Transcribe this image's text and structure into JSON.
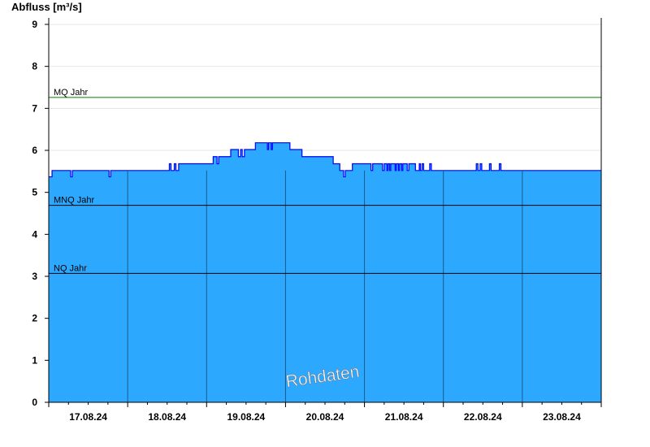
{
  "chart_data": {
    "type": "area",
    "title": "",
    "ylabel": "Abfluss [m³/s]",
    "xlabel": "",
    "ylim": [
      0,
      9
    ],
    "yticks": [
      "0",
      "1",
      "2",
      "3",
      "4",
      "5",
      "6",
      "7",
      "8",
      "9"
    ],
    "xlim": [
      "2024-08-17T00:00",
      "2024-08-24T00:00"
    ],
    "xtick_labels": [
      "17.08.24",
      "18.08.24",
      "19.08.24",
      "20.08.24",
      "21.08.24",
      "22.08.24",
      "23.08.24"
    ],
    "grid": true,
    "watermark": "Rohdaten",
    "colors": {
      "fill": "#2ca8ff",
      "line": "#0000ff",
      "mq": "#008000",
      "threshold": "#000000",
      "grid": "#e6e6e6",
      "day_lines": "#1a5a8a"
    },
    "thresholds": [
      {
        "label": "MQ Jahr",
        "value": 7.26
      },
      {
        "label": "MNQ Jahr",
        "value": 4.69
      },
      {
        "label": "NQ Jahr",
        "value": 3.07
      }
    ],
    "series": [
      {
        "step": "after",
        "points": [
          [
            "2024-08-17T00:00",
            5.37
          ],
          [
            "2024-08-17T01:00",
            5.52
          ],
          [
            "2024-08-17T06:40",
            5.37
          ],
          [
            "2024-08-17T07:10",
            5.52
          ],
          [
            "2024-08-17T18:20",
            5.37
          ],
          [
            "2024-08-17T18:50",
            5.52
          ],
          [
            "2024-08-18T12:40",
            5.68
          ],
          [
            "2024-08-18T13:10",
            5.52
          ],
          [
            "2024-08-18T14:10",
            5.68
          ],
          [
            "2024-08-18T14:40",
            5.52
          ],
          [
            "2024-08-18T15:30",
            5.68
          ],
          [
            "2024-08-19T02:00",
            5.85
          ],
          [
            "2024-08-19T03:10",
            5.68
          ],
          [
            "2024-08-19T03:40",
            5.85
          ],
          [
            "2024-08-19T07:20",
            6.02
          ],
          [
            "2024-08-19T09:40",
            5.85
          ],
          [
            "2024-08-19T10:20",
            6.02
          ],
          [
            "2024-08-19T10:50",
            5.85
          ],
          [
            "2024-08-19T11:30",
            6.02
          ],
          [
            "2024-08-19T14:50",
            6.18
          ],
          [
            "2024-08-19T18:30",
            6.02
          ],
          [
            "2024-08-19T18:50",
            6.18
          ],
          [
            "2024-08-19T19:40",
            6.02
          ],
          [
            "2024-08-19T20:00",
            6.18
          ],
          [
            "2024-08-20T01:20",
            6.02
          ],
          [
            "2024-08-20T05:00",
            5.85
          ],
          [
            "2024-08-20T14:30",
            5.68
          ],
          [
            "2024-08-20T16:30",
            5.52
          ],
          [
            "2024-08-20T17:40",
            5.37
          ],
          [
            "2024-08-20T18:10",
            5.52
          ],
          [
            "2024-08-20T20:20",
            5.68
          ],
          [
            "2024-08-21T02:00",
            5.52
          ],
          [
            "2024-08-21T02:30",
            5.68
          ],
          [
            "2024-08-21T05:30",
            5.52
          ],
          [
            "2024-08-21T06:00",
            5.68
          ],
          [
            "2024-08-21T06:50",
            5.52
          ],
          [
            "2024-08-21T07:10",
            5.68
          ],
          [
            "2024-08-21T07:40",
            5.52
          ],
          [
            "2024-08-21T08:00",
            5.68
          ],
          [
            "2024-08-21T09:20",
            5.52
          ],
          [
            "2024-08-21T09:40",
            5.68
          ],
          [
            "2024-08-21T10:20",
            5.52
          ],
          [
            "2024-08-21T10:40",
            5.68
          ],
          [
            "2024-08-21T11:20",
            5.52
          ],
          [
            "2024-08-21T11:40",
            5.68
          ],
          [
            "2024-08-21T13:00",
            5.52
          ],
          [
            "2024-08-21T13:30",
            5.68
          ],
          [
            "2024-08-21T15:30",
            5.52
          ],
          [
            "2024-08-21T16:40",
            5.68
          ],
          [
            "2024-08-21T17:00",
            5.52
          ],
          [
            "2024-08-21T17:30",
            5.68
          ],
          [
            "2024-08-21T18:00",
            5.52
          ],
          [
            "2024-08-21T19:50",
            5.68
          ],
          [
            "2024-08-21T20:20",
            5.52
          ],
          [
            "2024-08-22T10:00",
            5.68
          ],
          [
            "2024-08-22T10:30",
            5.52
          ],
          [
            "2024-08-22T11:10",
            5.68
          ],
          [
            "2024-08-22T11:40",
            5.52
          ],
          [
            "2024-08-22T14:00",
            5.68
          ],
          [
            "2024-08-22T14:30",
            5.52
          ],
          [
            "2024-08-22T17:00",
            5.68
          ],
          [
            "2024-08-22T17:30",
            5.52
          ],
          [
            "2024-08-24T00:00",
            5.52
          ]
        ]
      }
    ]
  }
}
